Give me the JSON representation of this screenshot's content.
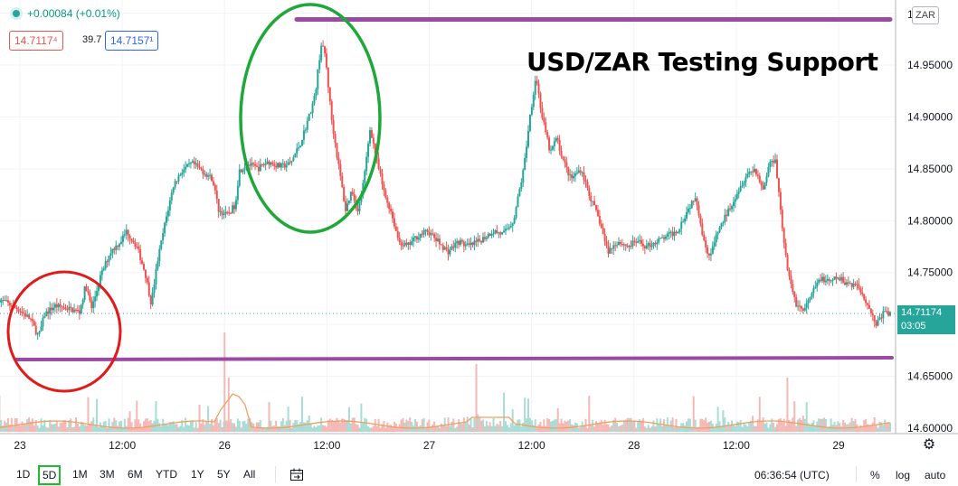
{
  "header": {
    "change_text": "+0.00084 (+0.01%)",
    "sell_price": "14.7117⁴",
    "spread": "39.7",
    "buy_price": "14.7157¹",
    "symbol_button": "ZAR"
  },
  "annotation": {
    "title": "USD/ZAR Testing Support"
  },
  "chart_data": {
    "type": "candlestick",
    "title": "",
    "xlabel": "",
    "ylabel": "",
    "y_ticks": [
      "14.95000",
      "14.90000",
      "14.85000",
      "14.80000",
      "14.75000",
      "14.65000",
      "14.60000"
    ],
    "y_top_partial": "1",
    "ylim": [
      14.597,
      15.01
    ],
    "x_ticks": [
      {
        "label": "23",
        "pos": 0.0
      },
      {
        "label": "12:00",
        "pos": 0.5
      },
      {
        "label": "26",
        "pos": 1.0
      },
      {
        "label": "12:00",
        "pos": 1.5
      },
      {
        "label": "27",
        "pos": 2.0
      },
      {
        "label": "12:00",
        "pos": 2.5
      },
      {
        "label": "28",
        "pos": 3.0
      },
      {
        "label": "12:00",
        "pos": 3.5
      },
      {
        "label": "29",
        "pos": 4.0
      }
    ],
    "x_range_days": [
      -0.1,
      4.3
    ],
    "price_path": [
      [
        -0.1,
        14.725
      ],
      [
        0.0,
        14.715
      ],
      [
        0.06,
        14.705
      ],
      [
        0.1,
        14.688
      ],
      [
        0.13,
        14.71
      ],
      [
        0.18,
        14.718
      ],
      [
        0.25,
        14.715
      ],
      [
        0.3,
        14.712
      ],
      [
        0.33,
        14.738
      ],
      [
        0.36,
        14.715
      ],
      [
        0.4,
        14.745
      ],
      [
        0.45,
        14.77
      ],
      [
        0.5,
        14.78
      ],
      [
        0.53,
        14.79
      ],
      [
        0.58,
        14.775
      ],
      [
        0.62,
        14.75
      ],
      [
        0.65,
        14.72
      ],
      [
        0.68,
        14.76
      ],
      [
        0.72,
        14.8
      ],
      [
        0.76,
        14.835
      ],
      [
        0.8,
        14.848
      ],
      [
        0.85,
        14.855
      ],
      [
        0.9,
        14.848
      ],
      [
        0.95,
        14.84
      ],
      [
        0.98,
        14.81
      ],
      [
        1.02,
        14.805
      ],
      [
        1.06,
        14.815
      ],
      [
        1.08,
        14.848
      ],
      [
        1.12,
        14.855
      ],
      [
        1.17,
        14.85
      ],
      [
        1.22,
        14.857
      ],
      [
        1.28,
        14.852
      ],
      [
        1.33,
        14.855
      ],
      [
        1.38,
        14.875
      ],
      [
        1.42,
        14.9
      ],
      [
        1.45,
        14.92
      ],
      [
        1.48,
        14.97
      ],
      [
        1.5,
        14.96
      ],
      [
        1.53,
        14.9
      ],
      [
        1.56,
        14.86
      ],
      [
        1.6,
        14.81
      ],
      [
        1.63,
        14.83
      ],
      [
        1.66,
        14.808
      ],
      [
        1.69,
        14.84
      ],
      [
        1.72,
        14.89
      ],
      [
        1.75,
        14.86
      ],
      [
        1.79,
        14.825
      ],
      [
        1.82,
        14.81
      ],
      [
        1.86,
        14.78
      ],
      [
        1.9,
        14.775
      ],
      [
        1.95,
        14.785
      ],
      [
        2.0,
        14.79
      ],
      [
        2.05,
        14.78
      ],
      [
        2.1,
        14.77
      ],
      [
        2.15,
        14.78
      ],
      [
        2.2,
        14.775
      ],
      [
        2.25,
        14.78
      ],
      [
        2.32,
        14.79
      ],
      [
        2.37,
        14.787
      ],
      [
        2.42,
        14.8
      ],
      [
        2.47,
        14.85
      ],
      [
        2.5,
        14.9
      ],
      [
        2.53,
        14.94
      ],
      [
        2.56,
        14.9
      ],
      [
        2.6,
        14.865
      ],
      [
        2.63,
        14.88
      ],
      [
        2.66,
        14.86
      ],
      [
        2.7,
        14.84
      ],
      [
        2.75,
        14.85
      ],
      [
        2.8,
        14.82
      ],
      [
        2.84,
        14.8
      ],
      [
        2.88,
        14.77
      ],
      [
        2.93,
        14.78
      ],
      [
        2.98,
        14.775
      ],
      [
        3.02,
        14.78
      ],
      [
        3.07,
        14.775
      ],
      [
        3.12,
        14.78
      ],
      [
        3.17,
        14.785
      ],
      [
        3.22,
        14.79
      ],
      [
        3.27,
        14.81
      ],
      [
        3.31,
        14.825
      ],
      [
        3.35,
        14.78
      ],
      [
        3.38,
        14.765
      ],
      [
        3.42,
        14.79
      ],
      [
        3.47,
        14.81
      ],
      [
        3.52,
        14.83
      ],
      [
        3.56,
        14.845
      ],
      [
        3.6,
        14.85
      ],
      [
        3.64,
        14.83
      ],
      [
        3.67,
        14.855
      ],
      [
        3.7,
        14.86
      ],
      [
        3.73,
        14.8
      ],
      [
        3.76,
        14.75
      ],
      [
        3.8,
        14.72
      ],
      [
        3.84,
        14.713
      ],
      [
        3.88,
        14.73
      ],
      [
        3.92,
        14.745
      ],
      [
        3.96,
        14.74
      ],
      [
        4.0,
        14.745
      ],
      [
        4.05,
        14.74
      ],
      [
        4.1,
        14.738
      ],
      [
        4.15,
        14.72
      ],
      [
        4.19,
        14.7
      ],
      [
        4.23,
        14.712
      ],
      [
        4.26,
        14.71
      ]
    ],
    "last_price": "14.71174",
    "countdown": "03:05",
    "resistance_line_price": 14.994,
    "support_line_price": 14.667
  },
  "colors": {
    "up": "#26a69a",
    "down": "#ef5350",
    "annotation_line": "#9b4aa3",
    "circle_red": "#e11a1a",
    "circle_green": "#1fa83a",
    "volume_ma": "#f0a060"
  },
  "toolbar": {
    "timeframes": [
      "1D",
      "5D",
      "1M",
      "3M",
      "6M",
      "YTD",
      "1Y",
      "5Y",
      "All"
    ],
    "active": "5D",
    "compare_icon": "calendar-range-icon",
    "time": "06:36:54 (UTC)",
    "percent": "%",
    "log": "log",
    "auto": "auto"
  }
}
